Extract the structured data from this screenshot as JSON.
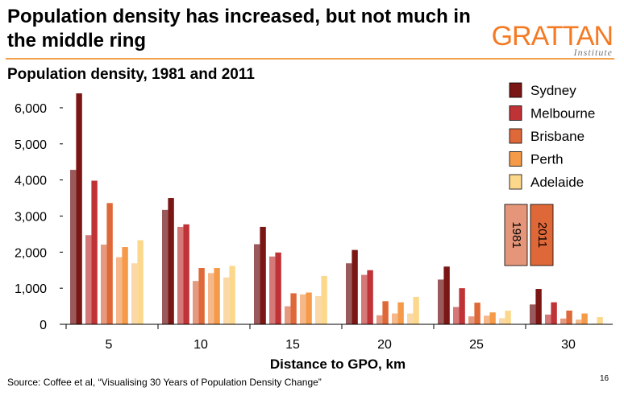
{
  "slide": {
    "title": "Population density has increased, but not much in the middle ring",
    "brand_name": "GRATTAN",
    "brand_sub": "Institute",
    "source": "Source: Coffee et al, “Visualising 30 Years of Population Density Change”",
    "page_number": "16",
    "brand_color": "#f47a24",
    "rule_color": "#f5a04a"
  },
  "chart_data": {
    "type": "bar",
    "title": "Population density, 1981 and 2011",
    "xlabel": "Distance to GPO, km",
    "ylabel": "",
    "ylim": [
      0,
      6400
    ],
    "yticks": [
      0,
      1000,
      2000,
      3000,
      4000,
      5000,
      6000
    ],
    "ytick_labels": [
      "0",
      "1,000",
      "2,000",
      "3,000",
      "4,000",
      "5,000",
      "6,000"
    ],
    "categories": [
      "5",
      "10",
      "15",
      "20",
      "25",
      "30"
    ],
    "year_labels": [
      "1981",
      "2011"
    ],
    "legend_position": "top-right",
    "series": [
      {
        "name": "Sydney",
        "color_1981": "#9a5a5c",
        "color_2011": "#7a1614",
        "values_1981": [
          4280,
          3170,
          2220,
          1690,
          1240,
          550
        ],
        "values_2011": [
          6400,
          3500,
          2700,
          2060,
          1600,
          980
        ]
      },
      {
        "name": "Melbourne",
        "color_1981": "#d47878",
        "color_2011": "#bf3236",
        "values_1981": [
          2470,
          2700,
          1880,
          1370,
          480,
          270
        ],
        "values_2011": [
          3980,
          2770,
          1990,
          1500,
          1000,
          610
        ]
      },
      {
        "name": "Brisbane",
        "color_1981": "#e59a80",
        "color_2011": "#df6838",
        "values_1981": [
          2210,
          1200,
          500,
          250,
          220,
          160
        ],
        "values_2011": [
          3360,
          1560,
          860,
          640,
          600,
          380
        ]
      },
      {
        "name": "Perth",
        "color_1981": "#f6b88a",
        "color_2011": "#f59a48",
        "values_1981": [
          1860,
          1420,
          830,
          300,
          240,
          130
        ],
        "values_2011": [
          2140,
          1560,
          880,
          610,
          330,
          300
        ]
      },
      {
        "name": "Adelaide",
        "color_1981": "#fbd8a8",
        "color_2011": "#fcd88c",
        "values_1981": [
          1690,
          1300,
          780,
          300,
          170,
          20
        ],
        "values_2011": [
          2330,
          1620,
          1340,
          760,
          380,
          200
        ]
      }
    ]
  }
}
